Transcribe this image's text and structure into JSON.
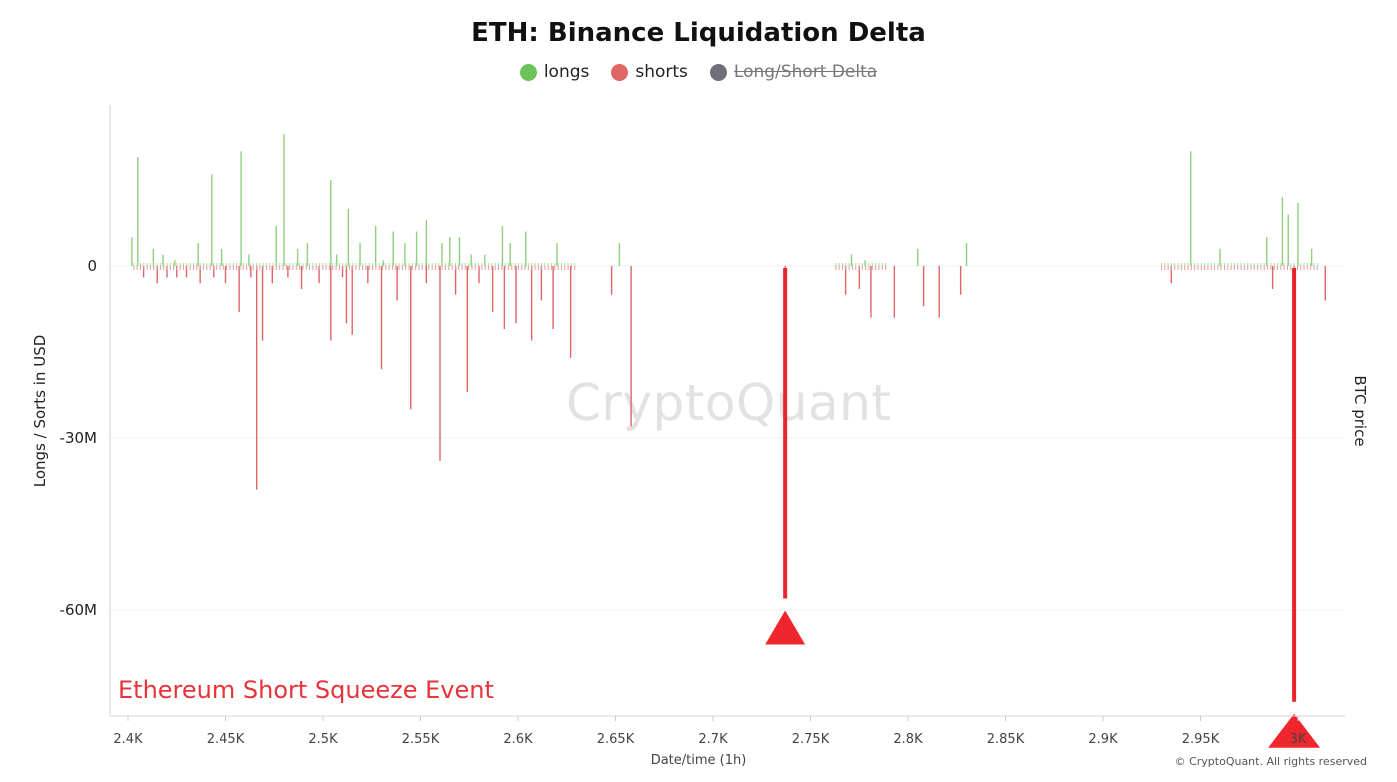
{
  "chart_data": {
    "type": "bar",
    "title": "ETH: Binance Liquidation Delta",
    "xlabel": "Date/time (1h)",
    "ylabel": "Longs / Sorts in USD",
    "y2label": "BTC price",
    "x_ticks": [
      "2.4K",
      "2.45K",
      "2.5K",
      "2.55K",
      "2.6K",
      "2.65K",
      "2.7K",
      "2.75K",
      "2.8K",
      "2.85K",
      "2.9K",
      "2.95K",
      "3K"
    ],
    "x_tick_values": [
      2400,
      2450,
      2500,
      2550,
      2600,
      2650,
      2700,
      2750,
      2800,
      2850,
      2900,
      2950,
      3000
    ],
    "y_ticks": [
      "0",
      "-30M",
      "-60M"
    ],
    "y_tick_values": [
      0,
      -30,
      -60
    ],
    "xlim": [
      2400,
      3030
    ],
    "ylim": [
      -77,
      23
    ],
    "grid": true,
    "legend": {
      "position": "top-center",
      "items": [
        {
          "label": "longs",
          "color": "#6cc35a",
          "active": true
        },
        {
          "label": "shorts",
          "color": "#e06666",
          "active": true
        },
        {
          "label": "Long/Short Delta",
          "color": "#6f6f7a",
          "active": false
        }
      ]
    },
    "series": [
      {
        "name": "longs",
        "color": "#8fd07e",
        "x": [
          2402,
          2405,
          2413,
          2418,
          2424,
          2436,
          2443,
          2448,
          2458,
          2462,
          2476,
          2480,
          2487,
          2492,
          2504,
          2507,
          2513,
          2519,
          2527,
          2531,
          2536,
          2542,
          2548,
          2553,
          2561,
          2565,
          2570,
          2576,
          2583,
          2592,
          2596,
          2604,
          2620,
          2652,
          2771,
          2778,
          2805,
          2830,
          2945,
          2960,
          2984,
          2992,
          2995,
          3000,
          3007
        ],
        "values": [
          5,
          19,
          3,
          2,
          1,
          4,
          16,
          3,
          20,
          2,
          7,
          23,
          3,
          4,
          15,
          2,
          10,
          4,
          7,
          1,
          6,
          4,
          6,
          8,
          4,
          5,
          5,
          2,
          2,
          7,
          4,
          6,
          4,
          4,
          2,
          1,
          3,
          4,
          20,
          3,
          5,
          12,
          9,
          11,
          3
        ]
      },
      {
        "name": "shorts",
        "color": "#e06666",
        "x": [
          2408,
          2415,
          2420,
          2425,
          2430,
          2437,
          2444,
          2450,
          2457,
          2463,
          2466,
          2469,
          2474,
          2482,
          2489,
          2498,
          2504,
          2510,
          2512,
          2515,
          2523,
          2530,
          2538,
          2545,
          2553,
          2560,
          2568,
          2574,
          2580,
          2587,
          2593,
          2599,
          2607,
          2612,
          2618,
          2627,
          2648,
          2658,
          2737,
          2768,
          2775,
          2781,
          2793,
          2808,
          2816,
          2827,
          2935,
          2987,
          2998,
          3014
        ],
        "values": [
          -2,
          -3,
          -2,
          -2,
          -2,
          -3,
          -2,
          -3,
          -8,
          -2,
          -39,
          -13,
          -3,
          -2,
          -4,
          -3,
          -13,
          -2,
          -10,
          -12,
          -3,
          -18,
          -6,
          -25,
          -3,
          -34,
          -5,
          -22,
          -3,
          -8,
          -11,
          -10,
          -13,
          -6,
          -11,
          -16,
          -5,
          -28,
          -58,
          -5,
          -4,
          -9,
          -9,
          -7,
          -9,
          -5,
          -3,
          -4,
          -76,
          -6
        ]
      }
    ],
    "annotations": [
      {
        "text": "Ethereum Short Squeeze Event",
        "color": "#e8333a"
      }
    ],
    "highlights": [
      {
        "x": 2737,
        "value": -58
      },
      {
        "x": 2998,
        "value": -76
      }
    ]
  },
  "watermark": "CryptoQuant",
  "copyright": "© CryptoQuant. All rights reserved"
}
